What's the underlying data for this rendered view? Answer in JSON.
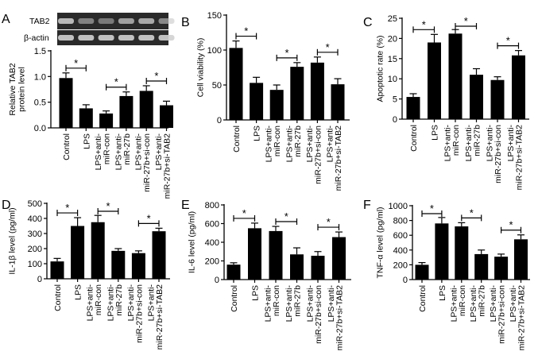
{
  "categories": [
    "Control",
    "LPS",
    "LPS+anti-|miR-con",
    "LPS+anti-|miR-27b",
    "LPS+anti-|miR-27b+si-con",
    "LPS+anti-|miR-27b+si-TAB2"
  ],
  "blot": {
    "rows": [
      "TAB2",
      "β-actin"
    ]
  },
  "chart_data": [
    {
      "panel": "A",
      "type": "bar",
      "ylabel": "Relative TAB2|protein level",
      "values": [
        0.97,
        0.38,
        0.28,
        0.62,
        0.72,
        0.44
      ],
      "errors": [
        0.1,
        0.07,
        0.05,
        0.08,
        0.1,
        0.08
      ],
      "ylim": [
        0,
        1.5
      ],
      "yticks": [
        "0.0",
        "0.5",
        "1.0",
        "1.5"
      ],
      "ytick_values": [
        0,
        0.5,
        1.0,
        1.5
      ],
      "significance": [
        {
          "from": 0,
          "to": 1,
          "label": "*"
        },
        {
          "from": 2,
          "to": 3,
          "label": "*"
        },
        {
          "from": 4,
          "to": 5,
          "label": "*"
        }
      ]
    },
    {
      "panel": "B",
      "type": "bar",
      "ylabel": "Cell viability (%)",
      "values": [
        103,
        53,
        43,
        76,
        82,
        51
      ],
      "errors": [
        10,
        8,
        7,
        6,
        8,
        8
      ],
      "ylim": [
        0,
        150
      ],
      "yticks": [
        "0",
        "50",
        "100",
        "150"
      ],
      "ytick_values": [
        0,
        50,
        100,
        150
      ],
      "significance": [
        {
          "from": 0,
          "to": 1,
          "label": "*"
        },
        {
          "from": 2,
          "to": 3,
          "label": "*"
        },
        {
          "from": 4,
          "to": 5,
          "label": "*"
        }
      ]
    },
    {
      "panel": "C",
      "type": "bar",
      "ylabel": "Apoptotic rate (%)",
      "values": [
        5.5,
        19,
        21.2,
        11,
        9.7,
        15.8
      ],
      "errors": [
        0.8,
        2,
        1,
        1.5,
        0.8,
        1.2
      ],
      "ylim": [
        0,
        25
      ],
      "yticks": [
        "0",
        "5",
        "10",
        "15",
        "20",
        "25"
      ],
      "ytick_values": [
        0,
        5,
        10,
        15,
        20,
        25
      ],
      "significance": [
        {
          "from": 0,
          "to": 1,
          "label": "*"
        },
        {
          "from": 2,
          "to": 3,
          "label": "*"
        },
        {
          "from": 4,
          "to": 5,
          "label": "*"
        }
      ]
    },
    {
      "panel": "D",
      "type": "bar",
      "ylabel": "IL-1β level (pg/ml)",
      "values": [
        115,
        350,
        375,
        185,
        170,
        315
      ],
      "errors": [
        20,
        55,
        45,
        15,
        15,
        20
      ],
      "ylim": [
        0,
        500
      ],
      "yticks": [
        "0",
        "100",
        "200",
        "300",
        "400",
        "500"
      ],
      "ytick_values": [
        0,
        100,
        200,
        300,
        400,
        500
      ],
      "significance": [
        {
          "from": 0,
          "to": 1,
          "label": "*"
        },
        {
          "from": 2,
          "to": 3,
          "label": "*"
        },
        {
          "from": 4,
          "to": 5,
          "label": "*"
        }
      ]
    },
    {
      "panel": "E",
      "type": "bar",
      "ylabel": "IL-6 level (pg/ml)",
      "values": [
        160,
        550,
        520,
        270,
        255,
        455
      ],
      "errors": [
        20,
        55,
        50,
        70,
        45,
        55
      ],
      "ylim": [
        0,
        800
      ],
      "yticks": [
        "0",
        "200",
        "400",
        "600",
        "800"
      ],
      "ytick_values": [
        0,
        200,
        400,
        600,
        800
      ],
      "significance": [
        {
          "from": 0,
          "to": 1,
          "label": "*"
        },
        {
          "from": 2,
          "to": 3,
          "label": "*"
        },
        {
          "from": 4,
          "to": 5,
          "label": "*"
        }
      ]
    },
    {
      "panel": "F",
      "type": "bar",
      "ylabel": "TNF-α level (pg/ml)",
      "values": [
        200,
        760,
        720,
        345,
        310,
        545
      ],
      "errors": [
        30,
        80,
        50,
        55,
        35,
        60
      ],
      "ylim": [
        0,
        1000
      ],
      "yticks": [
        "0",
        "200",
        "400",
        "600",
        "800",
        "1000"
      ],
      "ytick_values": [
        0,
        200,
        400,
        600,
        800,
        1000
      ],
      "significance": [
        {
          "from": 0,
          "to": 1,
          "label": "*"
        },
        {
          "from": 2,
          "to": 3,
          "label": "*"
        },
        {
          "from": 4,
          "to": 5,
          "label": "*"
        }
      ]
    }
  ]
}
